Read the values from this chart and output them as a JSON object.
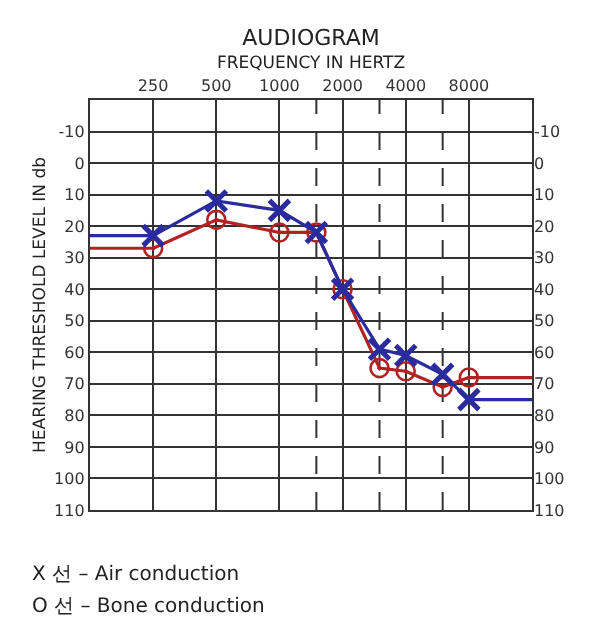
{
  "chart_data": {
    "type": "line",
    "title": "AUDIOGRAM",
    "xlabel": "FREQUENCY IN HERTZ",
    "ylabel": "HEARING THRESHOLD LEVEL IN db",
    "log": "x",
    "xlim": [
      125,
      16000
    ],
    "xticks": [
      250,
      500,
      1000,
      2000,
      4000,
      8000
    ],
    "ylim": [
      110,
      -20
    ],
    "yticks": [
      -10,
      0,
      10,
      20,
      30,
      40,
      50,
      60,
      70,
      80,
      90,
      100,
      110
    ],
    "y2lim": [
      110,
      -20
    ],
    "y2ticks": [
      -10,
      0,
      10,
      20,
      30,
      40,
      50,
      60,
      70,
      80,
      90,
      100,
      110
    ],
    "grid": true,
    "legend": false,
    "ref_lines": [
      {
        "axis": "x",
        "value": 1500,
        "label": null,
        "line_style": "dashed"
      },
      {
        "axis": "x",
        "value": 3000,
        "label": null,
        "line_style": "dashed"
      },
      {
        "axis": "x",
        "value": 6000,
        "label": null,
        "line_style": "dashed"
      }
    ],
    "series": [
      {
        "color": "#2b2ba0",
        "x": [
          125,
          250
        ],
        "values": [
          23,
          23
        ]
      },
      {
        "color": "#2b2ba0",
        "axis": "y2",
        "x": [
          8000,
          16000
        ],
        "values": [
          75,
          75
        ]
      },
      {
        "color": "#b22222",
        "x": [
          125,
          250
        ],
        "values": [
          27,
          27
        ]
      },
      {
        "color": "#b22222",
        "axis": "y2",
        "x": [
          8000,
          16000
        ],
        "values": [
          68,
          68
        ]
      },
      {
        "color": "#b22222",
        "marker": "circle",
        "x": [
          250,
          500,
          1000,
          1500,
          2000,
          3000,
          4000,
          6000,
          8000
        ],
        "values": [
          27,
          18,
          22,
          22,
          40,
          65,
          66,
          71,
          68
        ]
      },
      {
        "color": "#2b2ba0",
        "marker": "cross",
        "x": [
          250,
          500,
          1000,
          1500,
          2000,
          3000,
          4000,
          6000,
          8000
        ],
        "values": [
          23,
          12,
          15,
          22,
          40,
          59,
          61,
          67,
          75
        ]
      }
    ],
    "annotations": [
      "X 선 – Air conduction",
      "O 선 – Bone conduction"
    ]
  }
}
